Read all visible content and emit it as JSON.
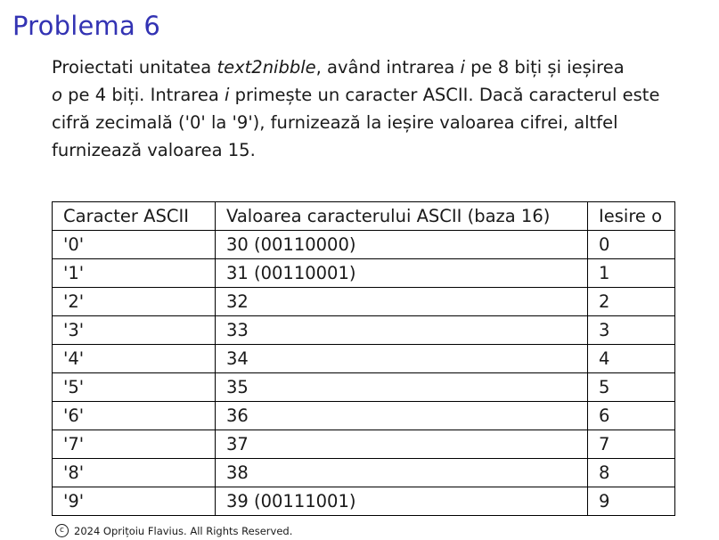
{
  "slide": {
    "title": "Problema 6"
  },
  "problem": {
    "part1": "Proiectati unitatea ",
    "unit_name": "text2nibble",
    "part2": ", având intrarea ",
    "input_var": "i",
    "part3": " pe 8 biți și ieșirea ",
    "output_var": "o",
    "part4": " pe 4 biți.  Intrarea ",
    "input_var2": "i",
    "part5": " primește un caracter ASCII. Dacă caracterul este cifră zecimală ('0' la '9'), furnizează la ieșire valoarea cifrei, altfel furnizează valoarea 15."
  },
  "table": {
    "headers": [
      "Caracter ASCII",
      "Valoarea caracterului ASCII (baza 16)",
      "Iesire o"
    ],
    "rows": [
      [
        "'0'",
        "30 (00110000)",
        "0"
      ],
      [
        "'1'",
        "31 (00110001)",
        "1"
      ],
      [
        "'2'",
        "32",
        "2"
      ],
      [
        "'3'",
        "33",
        "3"
      ],
      [
        "'4'",
        "34",
        "4"
      ],
      [
        "'5'",
        "35",
        "5"
      ],
      [
        "'6'",
        "36",
        "6"
      ],
      [
        "'7'",
        "37",
        "7"
      ],
      [
        "'8'",
        "38",
        "8"
      ],
      [
        "'9'",
        "39 (00111001)",
        "9"
      ]
    ]
  },
  "footer": {
    "icon": "copyright-icon",
    "text": "2024 Oprițoiu Flavius.  All Rights Reserved."
  }
}
